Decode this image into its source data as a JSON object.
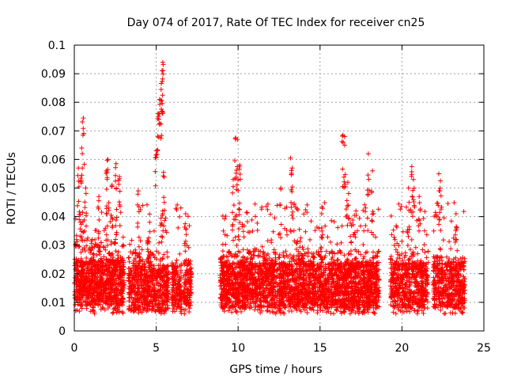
{
  "chart_data": {
    "type": "scatter",
    "title": "Day 074 of 2017, Rate Of TEC Index for receiver cn25",
    "xlabel": "GPS time / hours",
    "ylabel": "ROTI / TECUs",
    "xlim": [
      0,
      25
    ],
    "ylim": [
      0,
      0.1
    ],
    "xticks": [
      0,
      5,
      10,
      15,
      20,
      25
    ],
    "xtick_labels": [
      "0",
      "5",
      "10",
      "15",
      "20",
      "25"
    ],
    "yticks": [
      0,
      0.01,
      0.02,
      0.03,
      0.04,
      0.05,
      0.06,
      0.07,
      0.08,
      0.09,
      0.1
    ],
    "ytick_labels": [
      "0",
      "0.01",
      "0.02",
      "0.03",
      "0.04",
      "0.05",
      "0.06",
      "0.07",
      "0.08",
      "0.09",
      "0.1"
    ],
    "grid": true,
    "marker": "+",
    "color": "#ff0000",
    "series": [
      {
        "name": "ROTI",
        "segments": [
          {
            "start": 0.0,
            "end": 3.05,
            "base": 0.017,
            "spread": 0.026,
            "density": 320
          },
          {
            "start": 3.3,
            "end": 5.75,
            "base": 0.015,
            "spread": 0.022,
            "density": 280
          },
          {
            "start": 5.95,
            "end": 6.55,
            "base": 0.016,
            "spread": 0.015,
            "density": 260
          },
          {
            "start": 6.65,
            "end": 7.15,
            "base": 0.017,
            "spread": 0.015,
            "density": 260
          },
          {
            "start": 8.9,
            "end": 18.6,
            "base": 0.016,
            "spread": 0.022,
            "density": 300
          },
          {
            "start": 19.3,
            "end": 21.6,
            "base": 0.016,
            "spread": 0.022,
            "density": 260
          },
          {
            "start": 21.9,
            "end": 23.85,
            "base": 0.016,
            "spread": 0.02,
            "density": 260
          }
        ],
        "peaks": [
          {
            "x": 0.25,
            "y": 0.057
          },
          {
            "x": 0.45,
            "y": 0.064
          },
          {
            "x": 0.55,
            "y": 0.0745
          },
          {
            "x": 0.7,
            "y": 0.05
          },
          {
            "x": 1.1,
            "y": 0.032
          },
          {
            "x": 1.5,
            "y": 0.047
          },
          {
            "x": 1.95,
            "y": 0.056
          },
          {
            "x": 2.05,
            "y": 0.06
          },
          {
            "x": 2.3,
            "y": 0.051
          },
          {
            "x": 2.55,
            "y": 0.0585
          },
          {
            "x": 2.75,
            "y": 0.054
          },
          {
            "x": 3.9,
            "y": 0.049
          },
          {
            "x": 4.6,
            "y": 0.038
          },
          {
            "x": 5.0,
            "y": 0.063
          },
          {
            "x": 5.1,
            "y": 0.076
          },
          {
            "x": 5.2,
            "y": 0.081
          },
          {
            "x": 5.3,
            "y": 0.0845
          },
          {
            "x": 5.35,
            "y": 0.091
          },
          {
            "x": 5.4,
            "y": 0.094
          },
          {
            "x": 5.45,
            "y": 0.0555
          },
          {
            "x": 6.8,
            "y": 0.041
          },
          {
            "x": 9.7,
            "y": 0.053
          },
          {
            "x": 9.85,
            "y": 0.0675
          },
          {
            "x": 9.95,
            "y": 0.067
          },
          {
            "x": 10.1,
            "y": 0.058
          },
          {
            "x": 12.6,
            "y": 0.05
          },
          {
            "x": 13.2,
            "y": 0.0605
          },
          {
            "x": 13.3,
            "y": 0.057
          },
          {
            "x": 15.1,
            "y": 0.041
          },
          {
            "x": 16.4,
            "y": 0.0685
          },
          {
            "x": 16.5,
            "y": 0.068
          },
          {
            "x": 16.7,
            "y": 0.052
          },
          {
            "x": 17.95,
            "y": 0.062
          },
          {
            "x": 18.2,
            "y": 0.056
          },
          {
            "x": 20.4,
            "y": 0.05
          },
          {
            "x": 20.6,
            "y": 0.0575
          },
          {
            "x": 20.7,
            "y": 0.053
          },
          {
            "x": 21.05,
            "y": 0.047
          },
          {
            "x": 22.25,
            "y": 0.055
          },
          {
            "x": 22.35,
            "y": 0.0525
          },
          {
            "x": 23.3,
            "y": 0.041
          }
        ]
      }
    ]
  }
}
